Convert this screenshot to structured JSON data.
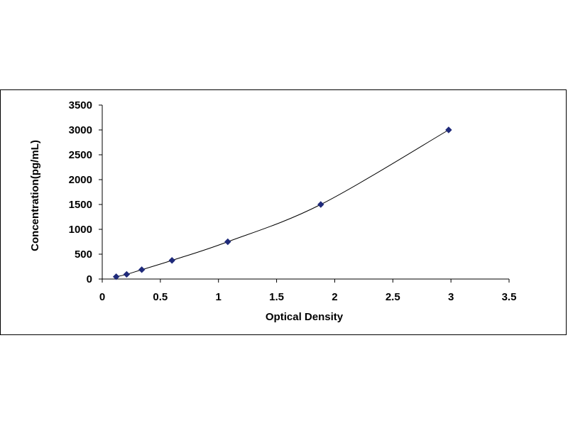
{
  "chart_data": {
    "type": "scatter",
    "title": "",
    "xlabel": "Optical Density",
    "ylabel": "Concentration(pg/mL)",
    "xlim": [
      0,
      3.5
    ],
    "ylim": [
      0,
      3500
    ],
    "xticks": [
      0,
      0.5,
      1,
      1.5,
      2,
      2.5,
      3,
      3.5
    ],
    "yticks": [
      0,
      500,
      1000,
      1500,
      2000,
      2500,
      3000,
      3500
    ],
    "grid": false,
    "legend": "none",
    "series": [
      {
        "x": [
          0.12,
          0.21,
          0.34,
          0.6,
          1.08,
          1.88,
          2.98
        ],
        "y": [
          47,
          94,
          188,
          375,
          750,
          1500,
          3000
        ],
        "marker": "diamond",
        "color": "#1f2a7a",
        "trendline": "smooth curve"
      }
    ]
  }
}
